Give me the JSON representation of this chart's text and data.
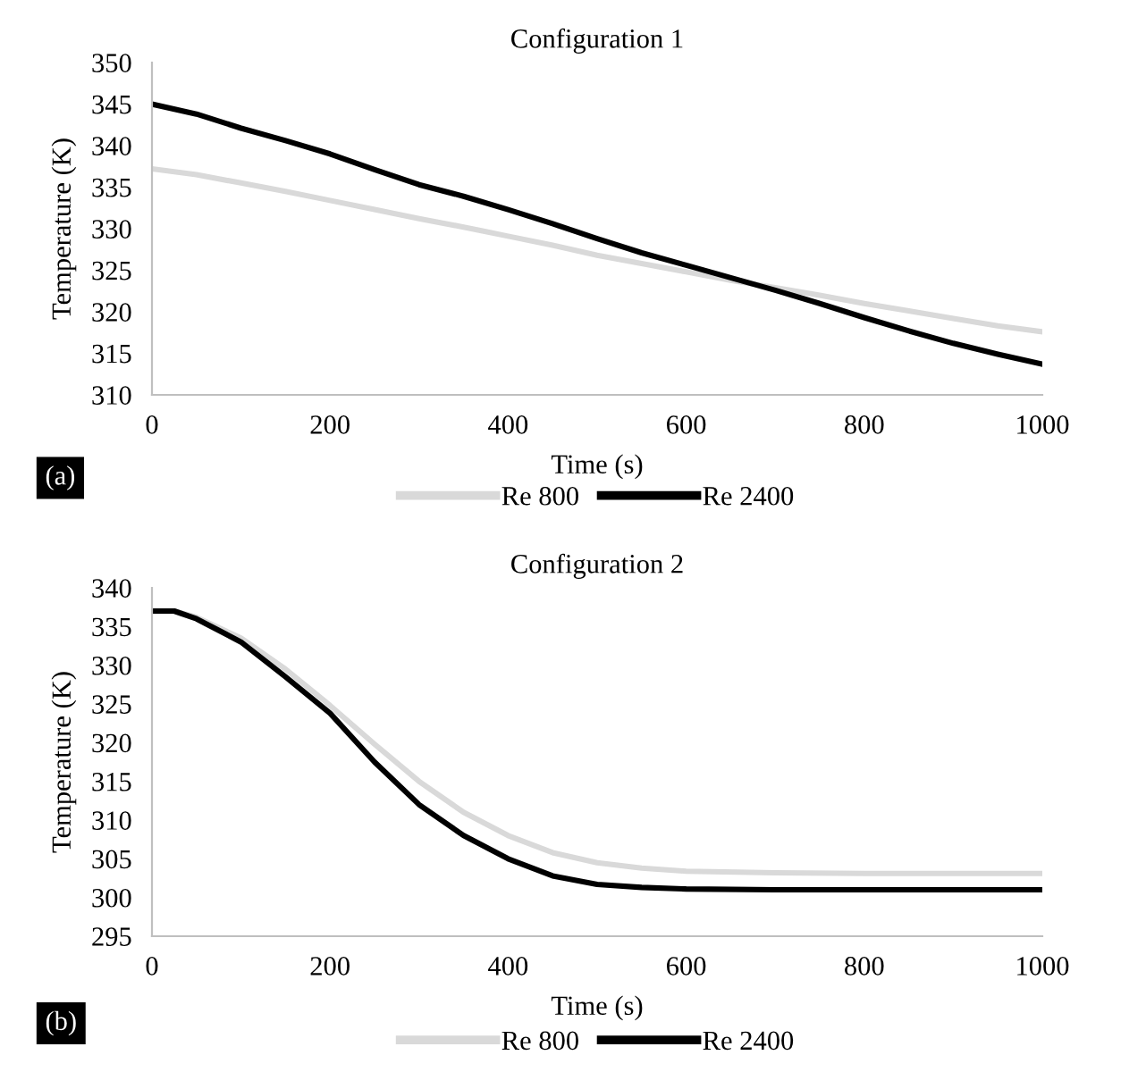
{
  "chart_data": [
    {
      "type": "line",
      "title": "Configuration 1",
      "xlabel": "Time (s)",
      "ylabel": "Temperature (K)",
      "annotations": [
        "(a)"
      ],
      "x": [
        0,
        50,
        100,
        150,
        200,
        250,
        300,
        350,
        400,
        450,
        500,
        550,
        600,
        650,
        700,
        750,
        800,
        850,
        900,
        950,
        1000
      ],
      "series": [
        {
          "name": "Re 800",
          "color": "#d9d9d9",
          "values": [
            337.2,
            336.5,
            335.5,
            334.5,
            333.4,
            332.3,
            331.2,
            330.2,
            329.1,
            328.0,
            326.8,
            325.8,
            324.8,
            323.8,
            322.9,
            322.0,
            321.0,
            320.1,
            319.2,
            318.3,
            317.6
          ]
        },
        {
          "name": "Re 2400",
          "color": "#000000",
          "values": [
            345.0,
            343.8,
            342.1,
            340.6,
            339.0,
            337.1,
            335.3,
            333.9,
            332.3,
            330.6,
            328.8,
            327.1,
            325.6,
            324.1,
            322.6,
            321.0,
            319.3,
            317.7,
            316.2,
            314.9,
            313.7
          ]
        }
      ],
      "xlim": [
        0,
        1000
      ],
      "xticks": [
        0,
        200,
        400,
        600,
        800,
        1000
      ],
      "ylim": [
        310,
        350
      ],
      "yticks": [
        310,
        315,
        320,
        325,
        330,
        335,
        340,
        345,
        350
      ],
      "grid": false,
      "legend": "bottom"
    },
    {
      "type": "line",
      "title": "Configuration 2",
      "xlabel": "Time (s)",
      "ylabel": "Temperature (K)",
      "annotations": [
        "(b)"
      ],
      "x": [
        0,
        25,
        50,
        100,
        150,
        200,
        250,
        300,
        350,
        400,
        450,
        500,
        550,
        600,
        700,
        800,
        900,
        1000
      ],
      "series": [
        {
          "name": "Re 800",
          "color": "#d9d9d9",
          "values": [
            337.0,
            337.0,
            336.2,
            333.5,
            329.5,
            324.8,
            319.8,
            315.0,
            311.0,
            308.0,
            305.8,
            304.5,
            303.8,
            303.4,
            303.2,
            303.1,
            303.1,
            303.1
          ]
        },
        {
          "name": "Re 2400",
          "color": "#000000",
          "values": [
            337.0,
            337.0,
            336.0,
            333.0,
            328.5,
            323.8,
            317.5,
            312.0,
            308.0,
            305.0,
            302.8,
            301.7,
            301.3,
            301.1,
            301.0,
            301.0,
            301.0,
            301.0
          ]
        }
      ],
      "xlim": [
        0,
        1000
      ],
      "xticks": [
        0,
        200,
        400,
        600,
        800,
        1000
      ],
      "ylim": [
        295,
        340
      ],
      "yticks": [
        295,
        300,
        305,
        310,
        315,
        320,
        325,
        330,
        335,
        340
      ],
      "grid": false,
      "legend": "bottom"
    }
  ]
}
